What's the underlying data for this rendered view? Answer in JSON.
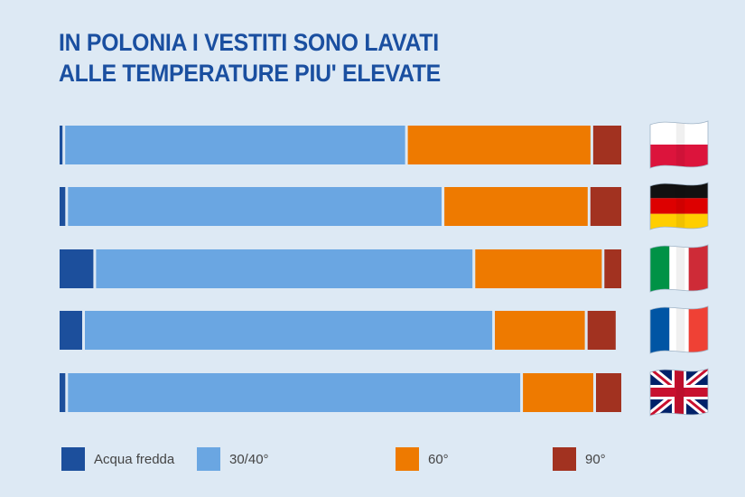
{
  "chart_data": {
    "type": "bar",
    "orientation": "horizontal",
    "stacked": true,
    "title_lines": [
      "IN POLONIA I VESTITI SONO LAVATI",
      "ALLE TEMPERATURE PIU' ELEVATE"
    ],
    "categories": [
      "poland-flag-icon",
      "germany-flag-icon",
      "italy-flag-icon",
      "france-flag-icon",
      "uk-flag-icon"
    ],
    "series": [
      {
        "name": "Acqua fredda",
        "color": "#1c4f9c",
        "values": [
          1,
          1.5,
          6.5,
          4.5,
          1.5
        ]
      },
      {
        "name": "30/40°",
        "color": "#6aa6e2",
        "values": [
          61,
          67,
          67.5,
          73,
          81
        ]
      },
      {
        "name": "60°",
        "color": "#ee7a00",
        "values": [
          33,
          26,
          23,
          16.5,
          13
        ]
      },
      {
        "name": "90°",
        "color": "#a23220",
        "values": [
          5,
          5.5,
          3,
          5,
          4.5
        ]
      }
    ],
    "xlim": [
      0,
      100
    ],
    "grid": false,
    "legend": "bottom"
  }
}
